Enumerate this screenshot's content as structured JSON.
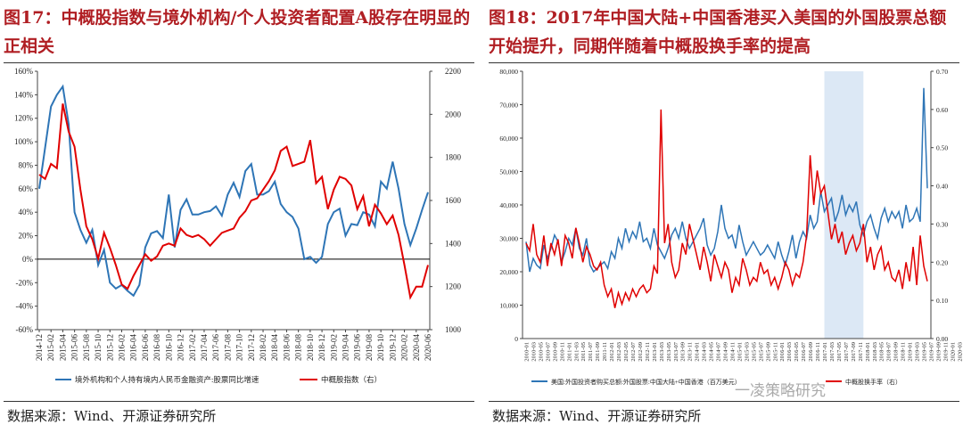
{
  "charts": [
    {
      "title": "图17：中概股指数与境外机构/个人投资者配置A股存在明显的正相关",
      "source": "数据来源：Wind、开源证券研究所",
      "chart_data": {
        "type": "line",
        "x": [
          "2014-12",
          "2015-01",
          "2015-02",
          "2015-03",
          "2015-04",
          "2015-05",
          "2015-06",
          "2015-07",
          "2015-08",
          "2015-09",
          "2015-10",
          "2015-11",
          "2015-12",
          "2016-01",
          "2016-02",
          "2016-03",
          "2016-04",
          "2016-05",
          "2016-06",
          "2016-07",
          "2016-08",
          "2016-09",
          "2016-10",
          "2016-11",
          "2016-12",
          "2017-01",
          "2017-02",
          "2017-03",
          "2017-04",
          "2017-05",
          "2017-06",
          "2017-07",
          "2017-08",
          "2017-09",
          "2017-10",
          "2017-11",
          "2017-12",
          "2018-01",
          "2018-02",
          "2018-03",
          "2018-04",
          "2018-05",
          "2018-06",
          "2018-07",
          "2018-08",
          "2018-09",
          "2018-10",
          "2018-11",
          "2018-12",
          "2019-01",
          "2019-02",
          "2019-03",
          "2019-04",
          "2019-05",
          "2019-06",
          "2019-07",
          "2019-08",
          "2019-09",
          "2019-10",
          "2019-11",
          "2019-12",
          "2020-01",
          "2020-02",
          "2020-03",
          "2020-04",
          "2020-05",
          "2020-06"
        ],
        "x_tick_labels": [
          "2014-12",
          "2015-02",
          "2015-04",
          "2015-06",
          "2015-08",
          "2015-10",
          "2015-12",
          "2016-02",
          "2016-04",
          "2016-06",
          "2016-08",
          "2016-10",
          "2016-12",
          "2017-02",
          "2017-04",
          "2017-06",
          "2017-08",
          "2017-10",
          "2017-12",
          "2018-02",
          "2018-04",
          "2018-06",
          "2018-08",
          "2018-10",
          "2018-12",
          "2019-02",
          "2019-04",
          "2019-06",
          "2019-08",
          "2019-10",
          "2019-12",
          "2020-02",
          "2020-04",
          "2020-06"
        ],
        "y_left": {
          "lim": [
            -60,
            160
          ],
          "ticks": [
            -60,
            -40,
            -20,
            0,
            20,
            40,
            60,
            80,
            100,
            120,
            140,
            160
          ],
          "format": "percent"
        },
        "y_right": {
          "lim": [
            1000,
            2200
          ],
          "ticks": [
            1000,
            1200,
            1400,
            1600,
            1800,
            2000,
            2200
          ]
        },
        "series": [
          {
            "name": "境外机构和个人持有境内人民币金融资产:股票同比增速",
            "axis": "left",
            "color": "#2e75b6",
            "values": [
              60,
              95,
              130,
              140,
              147,
              115,
              40,
              25,
              14,
              25,
              -5,
              8,
              -20,
              -25,
              -22,
              -27,
              -31,
              -22,
              10,
              22,
              24,
              18,
              55,
              10,
              42,
              51,
              38,
              38,
              40,
              41,
              45,
              37,
              55,
              65,
              53,
              75,
              81,
              55,
              55,
              58,
              66,
              47,
              40,
              36,
              26,
              0,
              2,
              -3,
              2,
              30,
              40,
              43,
              20,
              30,
              29,
              40,
              38,
              28,
              66,
              60,
              83,
              60,
              30,
              12,
              26,
              42,
              57
            ]
          },
          {
            "name": "中概股指数（右）",
            "axis": "right",
            "color": "#e00000",
            "values": [
              1720,
              1700,
              1770,
              1750,
              2050,
              1920,
              1850,
              1650,
              1480,
              1420,
              1330,
              1450,
              1380,
              1300,
              1210,
              1190,
              1250,
              1300,
              1350,
              1320,
              1340,
              1390,
              1400,
              1390,
              1470,
              1440,
              1430,
              1440,
              1420,
              1390,
              1420,
              1450,
              1460,
              1470,
              1520,
              1550,
              1600,
              1610,
              1650,
              1690,
              1740,
              1830,
              1850,
              1760,
              1770,
              1780,
              1880,
              1680,
              1710,
              1560,
              1650,
              1710,
              1700,
              1670,
              1560,
              1620,
              1480,
              1580,
              1540,
              1490,
              1530,
              1440,
              1300,
              1150,
              1200,
              1200,
              1300
            ]
          }
        ]
      }
    },
    {
      "title": "图18：2017年中国大陆+中国香港买入美国的外国股票总额开始提升，同期伴随着中概股换手率的提高",
      "source": "数据来源：Wind、开源证券研究所",
      "watermark": "一凌策略研究",
      "chart_data": {
        "type": "line",
        "x_tick_labels": [
          "2010-01",
          "2010-03",
          "2010-05",
          "2010-07",
          "2010-09",
          "2010-11",
          "2011-01",
          "2011-03",
          "2011-05",
          "2011-07",
          "2011-09",
          "2011-11",
          "2012-01",
          "2012-03",
          "2012-05",
          "2012-07",
          "2012-09",
          "2012-11",
          "2013-01",
          "2013-03",
          "2013-05",
          "2013-07",
          "2013-09",
          "2013-11",
          "2014-01",
          "2014-03",
          "2014-05",
          "2014-07",
          "2014-09",
          "2014-11",
          "2015-01",
          "2015-03",
          "2015-05",
          "2015-07",
          "2015-09",
          "2015-11",
          "2016-01",
          "2016-03",
          "2016-05",
          "2016-07",
          "2016-09",
          "2016-11",
          "2017-01",
          "2017-03",
          "2017-05",
          "2017-07",
          "2017-09",
          "2017-11",
          "2018-01",
          "2018-03",
          "2018-05",
          "2018-07",
          "2018-09",
          "2018-11",
          "2019-01",
          "2019-03",
          "2019-05",
          "2019-07",
          "2019-09",
          "2019-11",
          "2020-01",
          "2020-03"
        ],
        "shaded_period": [
          "2017-01",
          "2017-12"
        ],
        "y_left": {
          "lim": [
            0,
            80000
          ],
          "ticks": [
            0,
            10000,
            20000,
            30000,
            40000,
            50000,
            60000,
            70000,
            80000
          ]
        },
        "y_right": {
          "lim": [
            0,
            0.7
          ],
          "ticks": [
            "0.00",
            "0.10",
            "0.20",
            "0.30",
            "0.40",
            "0.50",
            "0.60",
            "0.70"
          ]
        },
        "series": [
          {
            "name": "美国:外国投资者购买总额:外国股票:中国大陆+中国香港（百万美元）",
            "axis": "left",
            "color": "#2e75b6",
            "values": [
              29000,
              20000,
              24000,
              22000,
              21000,
              28000,
              24000,
              27000,
              31000,
              29000,
              23000,
              26000,
              30000,
              28000,
              33000,
              27000,
              25000,
              30000,
              22000,
              20000,
              21000,
              22000,
              23000,
              21000,
              26000,
              24000,
              30000,
              27000,
              33000,
              29000,
              32000,
              30000,
              35000,
              29000,
              30000,
              27000,
              33000,
              28000,
              26000,
              24000,
              27000,
              31000,
              33000,
              30000,
              35000,
              30000,
              27000,
              29000,
              31000,
              33000,
              36000,
              28000,
              25000,
              27000,
              32000,
              40000,
              33000,
              30000,
              31000,
              27000,
              34000,
              29000,
              25000,
              27000,
              29000,
              27000,
              25000,
              26000,
              28000,
              26000,
              24000,
              29000,
              25000,
              22000,
              26000,
              31000,
              24000,
              29000,
              32000,
              30000,
              37000,
              33000,
              35000,
              44000,
              38000,
              40000,
              42000,
              35000,
              38000,
              43000,
              37000,
              40000,
              38000,
              41000,
              34000,
              31000,
              35000,
              37000,
              33000,
              30000,
              36000,
              39000,
              35000,
              38000,
              36000,
              38000,
              33000,
              40000,
              35000,
              36000,
              39000,
              35000,
              75000,
              45000
            ]
          },
          {
            "name": "中概股换手率（右）",
            "axis": "right",
            "color": "#e00000",
            "values": [
              0.25,
              0.23,
              0.3,
              0.22,
              0.2,
              0.27,
              0.19,
              0.25,
              0.22,
              0.26,
              0.19,
              0.27,
              0.25,
              0.21,
              0.29,
              0.25,
              0.2,
              0.24,
              0.22,
              0.19,
              0.18,
              0.2,
              0.14,
              0.11,
              0.13,
              0.08,
              0.12,
              0.09,
              0.12,
              0.1,
              0.13,
              0.11,
              0.13,
              0.14,
              0.12,
              0.13,
              0.19,
              0.17,
              0.6,
              0.25,
              0.3,
              0.2,
              0.16,
              0.18,
              0.25,
              0.22,
              0.3,
              0.26,
              0.22,
              0.18,
              0.24,
              0.2,
              0.15,
              0.22,
              0.19,
              0.16,
              0.2,
              0.18,
              0.12,
              0.16,
              0.14,
              0.21,
              0.18,
              0.14,
              0.16,
              0.15,
              0.2,
              0.17,
              0.18,
              0.14,
              0.16,
              0.13,
              0.16,
              0.2,
              0.18,
              0.14,
              0.17,
              0.16,
              0.2,
              0.27,
              0.48,
              0.35,
              0.44,
              0.38,
              0.4,
              0.33,
              0.26,
              0.3,
              0.25,
              0.28,
              0.22,
              0.25,
              0.27,
              0.23,
              0.25,
              0.3,
              0.2,
              0.24,
              0.18,
              0.22,
              0.24,
              0.18,
              0.2,
              0.16,
              0.15,
              0.18,
              0.13,
              0.2,
              0.15,
              0.24,
              0.14,
              0.27,
              0.19,
              0.15
            ]
          }
        ]
      }
    }
  ]
}
